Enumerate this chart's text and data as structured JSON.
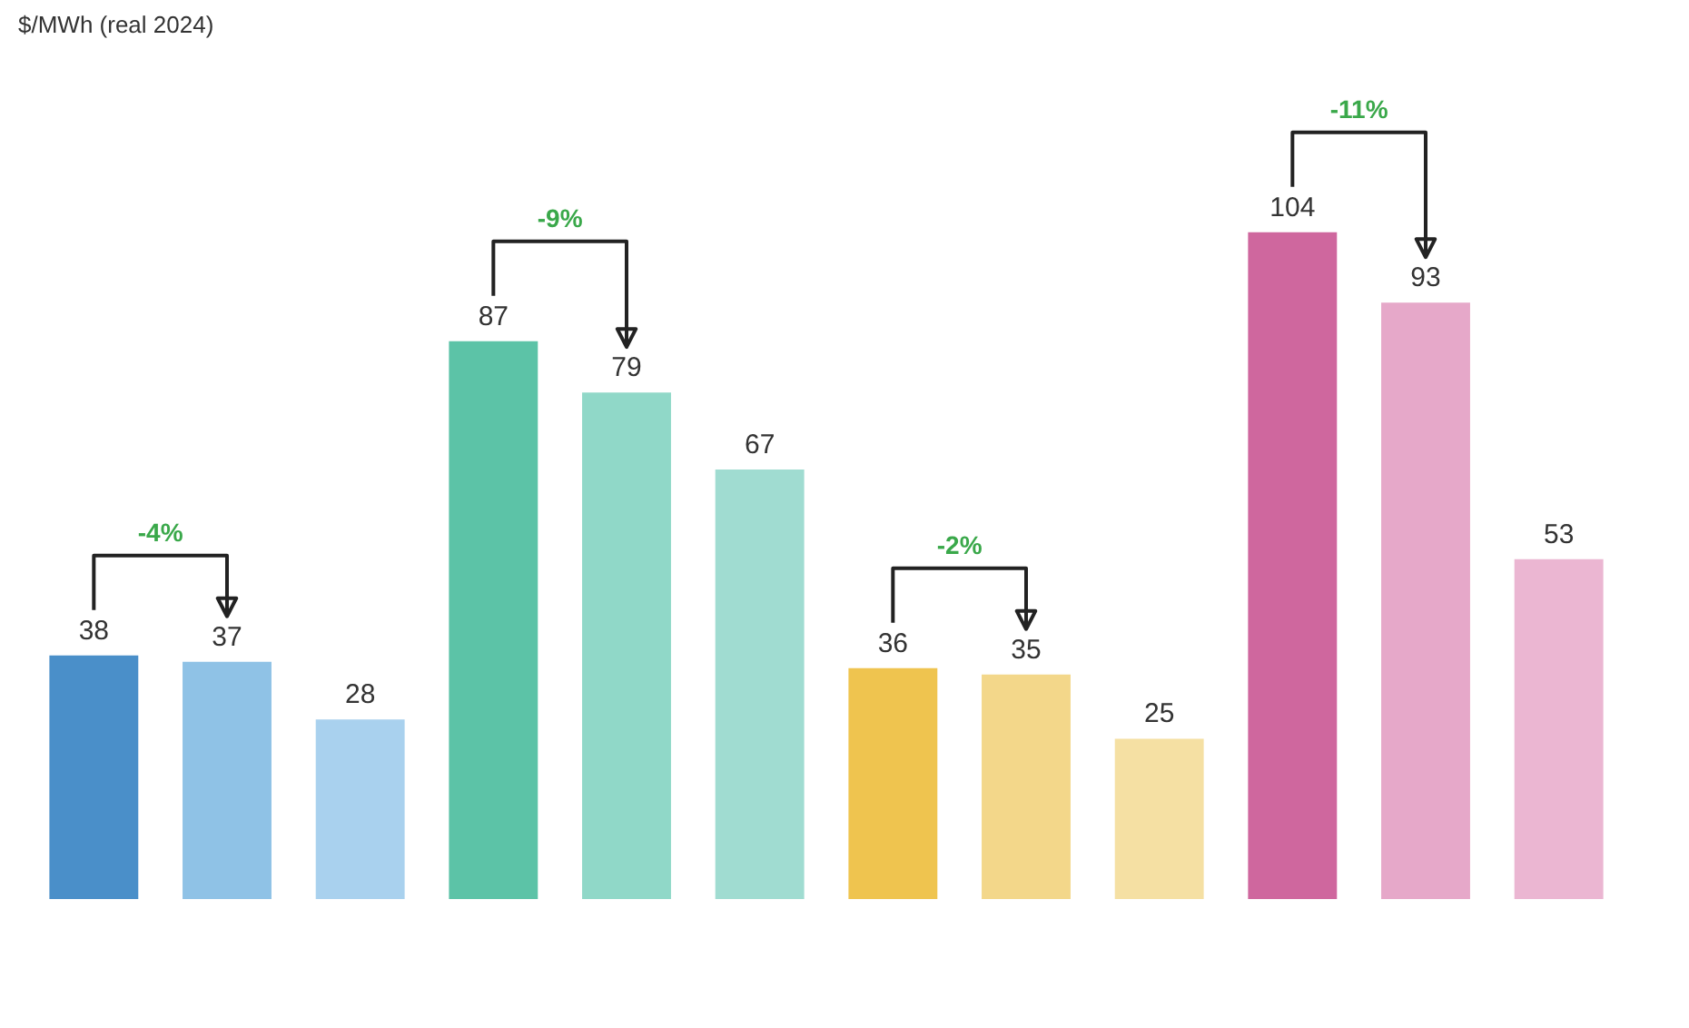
{
  "chart_data": {
    "type": "bar",
    "categories": [
      null,
      null,
      null,
      null,
      null,
      null,
      null,
      null,
      null,
      null,
      null,
      null
    ],
    "values": [
      38,
      37,
      28,
      87,
      79,
      67,
      36,
      35,
      25,
      104,
      93,
      53
    ],
    "colors": [
      "#4a8fc9",
      "#8fc2e6",
      "#a9d1ee",
      "#5cc3a7",
      "#90d8c8",
      "#a0dcd1",
      "#efc44f",
      "#f3d78a",
      "#f5e0a3",
      "#cf679e",
      "#e6a8c9",
      "#ebb6d2"
    ],
    "data_labels": true,
    "annotations": [
      "$/MWh (real 2024)",
      "-4%",
      "-9%",
      "-2%",
      "-11%"
    ]
  }
}
